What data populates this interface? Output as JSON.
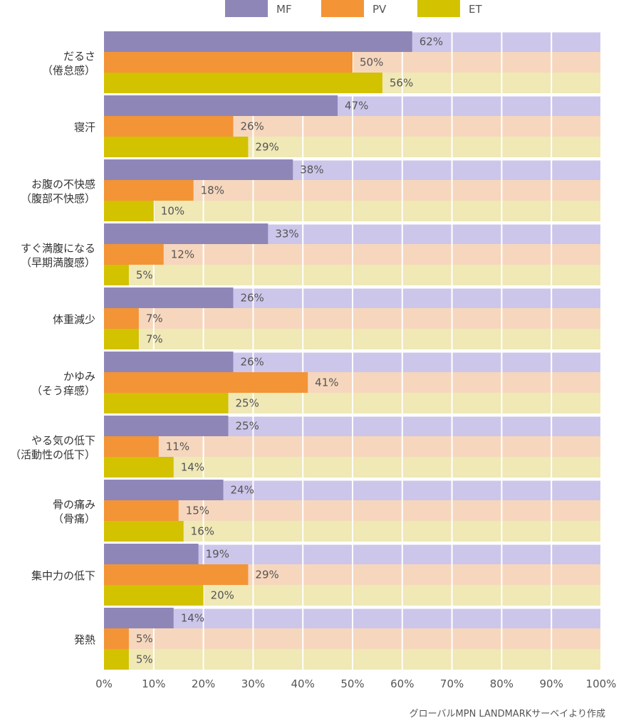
{
  "chart_data": {
    "type": "bar",
    "orientation": "horizontal",
    "categories": [
      [
        "だるさ",
        "（倦怠感）"
      ],
      [
        "寝汗"
      ],
      [
        "お腹の不快感",
        "（腹部不快感）"
      ],
      [
        "すぐ満腹になる",
        "（早期満腹感）"
      ],
      [
        "体重減少"
      ],
      [
        "かゆみ",
        "（そう痒感）"
      ],
      [
        "やる気の低下",
        "（活動性の低下）"
      ],
      [
        "骨の痛み",
        "（骨痛）"
      ],
      [
        "集中力の低下"
      ],
      [
        "発熱"
      ]
    ],
    "series": [
      {
        "name": "MF",
        "color": "#8f86b8",
        "track_color": "#cdc6eb",
        "values": [
          62,
          47,
          38,
          33,
          26,
          26,
          25,
          24,
          19,
          14
        ]
      },
      {
        "name": "PV",
        "color": "#f39437",
        "track_color": "#f6d7bd",
        "values": [
          50,
          26,
          18,
          12,
          7,
          41,
          11,
          15,
          29,
          5
        ]
      },
      {
        "name": "ET",
        "color": "#d2c200",
        "track_color": "#f0e8b5",
        "values": [
          56,
          29,
          10,
          5,
          7,
          25,
          14,
          16,
          20,
          5
        ]
      }
    ],
    "value_suffix": "%",
    "xlim": [
      0,
      100
    ],
    "xticks": [
      "0%",
      "10%",
      "20%",
      "30%",
      "40%",
      "50%",
      "60%",
      "70%",
      "80%",
      "90%",
      "100%"
    ],
    "grid": true,
    "legend_position": "top-center"
  },
  "source_note": "グローバルMPN LANDMARKサーベイより作成"
}
